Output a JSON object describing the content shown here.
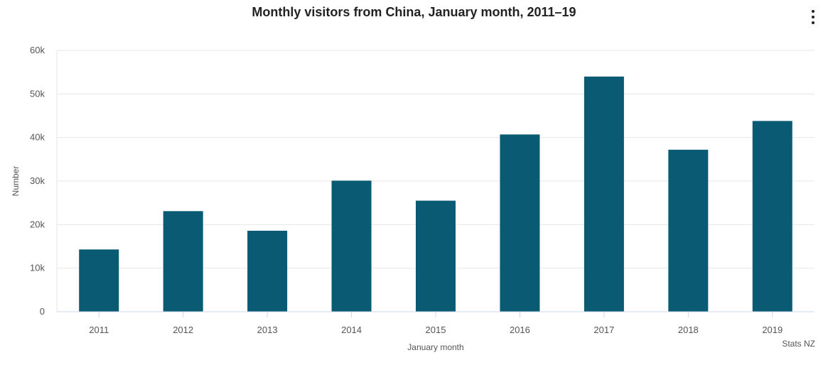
{
  "chart_data": {
    "type": "bar",
    "title": "Monthly visitors from China, January month, 2011–19",
    "xlabel": "January month",
    "ylabel": "Number",
    "categories": [
      "2011",
      "2012",
      "2013",
      "2014",
      "2015",
      "2016",
      "2017",
      "2018",
      "2019"
    ],
    "values": [
      14300,
      23100,
      18600,
      30100,
      25500,
      40700,
      54000,
      37200,
      43800
    ],
    "ylim": [
      0,
      60000
    ],
    "yticks": [
      0,
      10000,
      20000,
      30000,
      40000,
      50000,
      60000
    ],
    "ytick_labels": [
      "0",
      "10k",
      "20k",
      "30k",
      "40k",
      "50k",
      "60k"
    ],
    "grid": true,
    "legend": "none",
    "bar_color": "#0a5a73",
    "credit": "Stats NZ"
  },
  "menu": {
    "icon": "vertical-ellipsis-icon"
  }
}
